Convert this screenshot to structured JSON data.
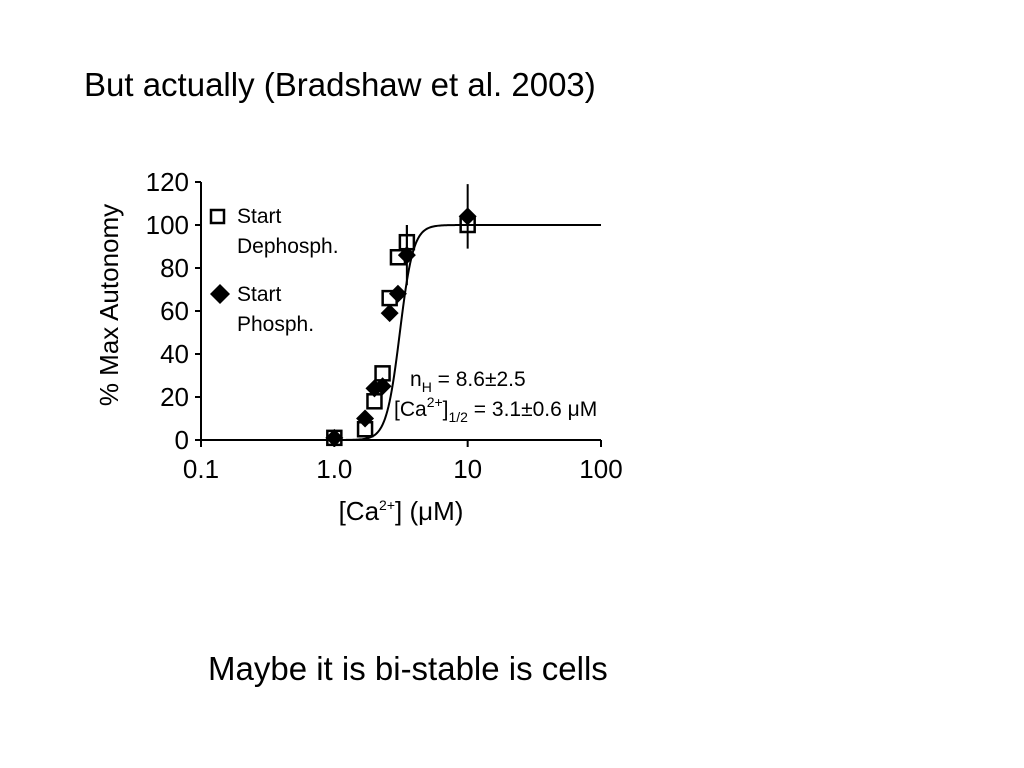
{
  "slide": {
    "title": "But actually (Bradshaw et al. 2003)",
    "caption": "Maybe it is bi-stable is cells"
  },
  "chart_data": {
    "type": "scatter",
    "x_scale": "log",
    "xlim": [
      0.1,
      100
    ],
    "ylim": [
      0,
      120
    ],
    "xticks": [
      0.1,
      1.0,
      10,
      100
    ],
    "xtick_labels": [
      "0.1",
      "1.0",
      "10",
      "100"
    ],
    "yticks": [
      0,
      20,
      40,
      60,
      80,
      100,
      120
    ],
    "ytick_labels": [
      "0",
      "20",
      "40",
      "60",
      "80",
      "100",
      "120"
    ],
    "xlabel": {
      "pre": "[Ca",
      "sup": "2+",
      "post": "] (μM)"
    },
    "ylabel": "% Max Autonomy",
    "grid": false,
    "legend_position": "top-left",
    "series": [
      {
        "name_line1": "Start",
        "name_line2": "Dephosph.",
        "marker": "open-square",
        "points": [
          {
            "x": 1.0,
            "y": 1
          },
          {
            "x": 1.7,
            "y": 5
          },
          {
            "x": 2.0,
            "y": 18
          },
          {
            "x": 2.3,
            "y": 31
          },
          {
            "x": 2.6,
            "y": 66
          },
          {
            "x": 3.0,
            "y": 85
          },
          {
            "x": 3.5,
            "y": 92,
            "err": 8
          },
          {
            "x": 10,
            "y": 100
          }
        ]
      },
      {
        "name_line1": "Start",
        "name_line2": "Phosph.",
        "marker": "filled-diamond",
        "points": [
          {
            "x": 1.0,
            "y": 1
          },
          {
            "x": 1.7,
            "y": 10
          },
          {
            "x": 2.0,
            "y": 24
          },
          {
            "x": 2.3,
            "y": 25
          },
          {
            "x": 2.6,
            "y": 59
          },
          {
            "x": 3.0,
            "y": 68
          },
          {
            "x": 3.5,
            "y": 86,
            "err": 14
          },
          {
            "x": 10,
            "y": 104,
            "err": 15
          }
        ]
      }
    ],
    "fit_curve": {
      "nH": 8.6,
      "K_half": 3.1,
      "ymax": 100
    },
    "annotations": {
      "nh_label": "n",
      "nh_sub": "H",
      "nh_value": " = 8.6±2.5",
      "ca_pre": "[Ca",
      "ca_sup": "2+",
      "ca_close": "]",
      "ca_sub": "1/2",
      "ca_value": " = 3.1±0.6 μM"
    }
  }
}
